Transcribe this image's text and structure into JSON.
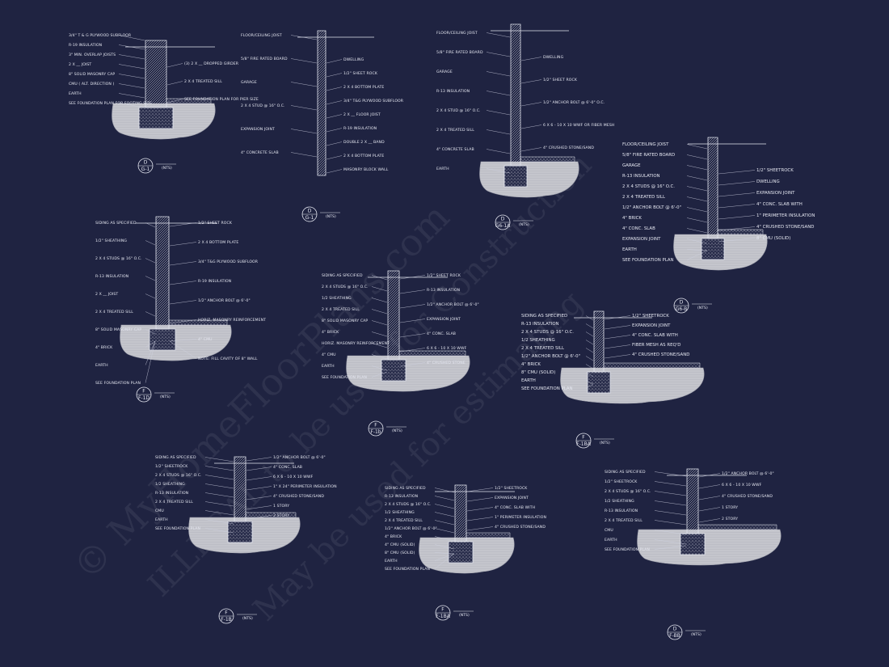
{
  "watermark": [
    "© MyHomeFloorPlans.com",
    "ILLEGAL to be used for Construction",
    "May be used for estimating"
  ],
  "details": [
    {
      "tag_top": "D",
      "tag_bottom": "G-1",
      "note": "(NTS)",
      "labels_left": [
        "3/4\" T & G PLYWOOD SUBFLOOR",
        "R-19 INSULATION",
        "3\" MIN. OVERLAP JOISTS",
        "2 X __ JOIST",
        "8\" SOLID MASONRY CAP",
        "CMU ( ALT. DIRECTION )",
        "EARTH",
        "SEE FOUNDATION PLAN FOR FOOTING SIZE"
      ],
      "labels_right": [
        "(3) 2 X __ DROPPED GIRDER",
        "2 X 4 TREATED SILL",
        "SEE FOUNDATION PLAN FOR PIER SIZE"
      ]
    },
    {
      "tag_top": "D",
      "tag_bottom": "G-1",
      "note": "(NTS)",
      "labels_left": [
        "FLOOR/CEILING JOIST",
        "5/8\" FIRE RATED BOARD",
        "GARAGE",
        "2 X 4 STUD @ 16\" O.C.",
        "EXPANSION JOINT",
        "4\" CONCRETE SLAB"
      ],
      "labels_right": [
        "DWELLING",
        "1/2\" SHEET ROCK",
        "2 X 4 BOTTOM PLATE",
        "3/4\" T&G PLYWOOD SUBFLOOR",
        "2 X __ FLOOR JOIST",
        "R-19 INSULATION",
        "DOUBLE 2 X __ BAND",
        "2 X 4 BOTTOM PLATE",
        "MASONRY BLOCK WALL"
      ]
    },
    {
      "tag_top": "D",
      "tag_bottom": "G6-1A",
      "note": "(NTS)",
      "labels_left": [
        "FLOOR/CEILING JOIST",
        "5/8\" FIRE RATED BOARD",
        "GARAGE",
        "R-13 INSULATION",
        "2 X 4 STUD @ 16\" O.C.",
        "2 X 4 TREATED SILL",
        "4\" CONCRETE SLAB",
        "EARTH"
      ],
      "labels_right": [
        "DWELLING",
        "1/2\" SHEET ROCK",
        "1/2\" ANCHOR BOLT @ 6'-0\" O.C.",
        "6 X 6 - 10 X 10 WWF OR FIBER MESH",
        "4\" CRUSHED STONE/SAND"
      ]
    },
    {
      "tag_top": "D",
      "tag_bottom": "G6-B",
      "note": "(NTS)",
      "labels_left": [
        "FLOOR/CEILING JOIST",
        "5/8\" FIRE RATED BOARD",
        "GARAGE",
        "R-13 INSULATION",
        "2 X 4 STUDS @ 16\" O.C.",
        "2 X 4 TREATED SILL",
        "1/2\" ANCHOR BOLT @ 6'-0\"",
        "4\" BRICK",
        "4\" CONC. SLAB",
        "EXPANSION JOINT",
        "EARTH",
        "SEE FOUNDATION PLAN"
      ],
      "labels_right": [
        "1/2\" SHEETROCK",
        "DWELLING",
        "EXPANSION JOINT",
        "4\" CONC. SLAB WITH",
        "1\" PERIMETER INSULATION",
        "4\" CRUSHED STONE/SAND",
        "8\" CMU (SOLID)"
      ]
    },
    {
      "tag_top": "F",
      "tag_bottom": "F-1D",
      "note": "(NTS)",
      "labels_left": [
        "SIDING AS SPECIFIED",
        "1/2\" SHEATHING",
        "2 X 4 STUDS @ 16\" O.C.",
        "R-13 INSULATION",
        "2 X __ JOIST",
        "2 X 4 TREATED SILL",
        "8\" SOLID MASONRY CAP",
        "4\" BRICK",
        "EARTH",
        "SEE FOUNDATION PLAN"
      ],
      "labels_right": [
        "1/2\" SHEET ROCK",
        "2 X 4 BOTTOM PLATE",
        "3/4\" T&G PLYWOOD SUBFLOOR",
        "R-19 INSULATION",
        "1/2\" ANCHOR BOLT @ 6'-0\"",
        "HORIZ. MASONRY REINFORCEMENT",
        "4\" CMU",
        "NOTE: FILL CAVITY OF 8\" WALL"
      ]
    },
    {
      "tag_top": "F",
      "tag_bottom": "F-1b",
      "note": "(NTS)",
      "labels_left": [
        "SIDING AS SPECIFIED",
        "2 X 4 STUDS @ 16\" O.C.",
        "1/2 SHEATHING",
        "2 X 4 TREATED SILL",
        "8\" SOLID MASONRY CAP",
        "4\" BRICK",
        "HORIZ. MASONRY REINFORCEMENT",
        "4\" CMU",
        "EARTH",
        "SEE FOUNDATION PLAN"
      ],
      "labels_right": [
        "1/2\" SHEET ROCK",
        "R-13 INSULATION",
        "1/2\" ANCHOR BOLT @ 6'-0\"",
        "EXPANSION JOINT",
        "4\" CONC. SLAB",
        "6 X 6 - 10 X 10 WWF",
        "4\" CRUSHED STONE"
      ]
    },
    {
      "tag_top": "F",
      "tag_bottom": "F-1BA",
      "note": "(NTS)",
      "labels_left": [
        "SIDING AS SPECIFIED",
        "R-13 INSULATION",
        "2 X 4 STUDS @ 16\" O.C.",
        "1/2 SHEATHING",
        "2 X 4 TREATED SILL",
        "1/2\" ANCHOR BOLT @ 6'-0\"",
        "4\" BRICK",
        "8\" CMU (SOLID)",
        "EARTH",
        "SEE FOUNDATION PLAN"
      ],
      "labels_right": [
        "1/2\" SHEETROCK",
        "EXPANSION JOINT",
        "4\" CONC. SLAB WITH",
        "FIBER MESH AS REQ'D",
        "4\" CRUSHED STONE/SAND"
      ]
    },
    {
      "tag_top": "F",
      "tag_bottom": "F-1B",
      "note": "(NTS)",
      "labels_left": [
        "SIDING AS SPECIFIED",
        "1/2\" SHEETROCK",
        "2 X 4 STUDS @ 16\" O.C.",
        "1/2 SHEATHING",
        "R-13 INSULATION",
        "2 X 4 TREATED SILL",
        "CMU",
        "EARTH",
        "SEE FOUNDATION PLAN"
      ],
      "labels_right": [
        "1/2\" ANCHOR BOLT @ 6'-0\"",
        "4\" CONC. SLAB",
        "6 X 6 - 10 X 10 WWF",
        "1\" X 24\" PERIMETER INSULATION",
        "4\" CRUSHED STONE/SAND",
        "1 STORY",
        "2 STORY"
      ]
    },
    {
      "tag_top": "F",
      "tag_bottom": "F-1BA",
      "note": "(NTS)",
      "labels_left": [
        "SIDING AS SPECIFIED",
        "R-13 INSULATION",
        "2 X 4 STUDS @ 16\" O.C.",
        "1/2 SHEATHING",
        "2 X 4 TREATED SILL",
        "1/2\" ANCHOR BOLT @ 6'-0\"",
        "4\" BRICK",
        "4\" CMU (SOLID)",
        "8\" CMU (SOLID)",
        "EARTH",
        "SEE FOUNDATION PLAN"
      ],
      "labels_right": [
        "1/2\" SHEETROCK",
        "EXPANSION JOINT",
        "4\" CONC. SLAB WITH",
        "1\" PERIMETER INSULATION",
        "4\" CRUSHED STONE/SAND"
      ]
    },
    {
      "tag_top": "D",
      "tag_bottom": "F-BB",
      "note": "(NTS)",
      "labels_left": [
        "SIDING AS SPECIFIED",
        "1/2\" SHEETROCK",
        "2 X 4 STUDS @ 16\" O.C.",
        "1/2 SHEATHING",
        "R-13 INSULATION",
        "2 X 4 TREATED SILL",
        "CMU",
        "EARTH",
        "SEE FOUNDATION PLAN"
      ],
      "labels_right": [
        "1/2\" ANCHOR BOLT @ 6'-0\"",
        "6 X 6 - 10 X 10 WWF",
        "4\" CRUSHED STONE/SAND",
        "1 STORY",
        "2 STORY"
      ]
    }
  ]
}
